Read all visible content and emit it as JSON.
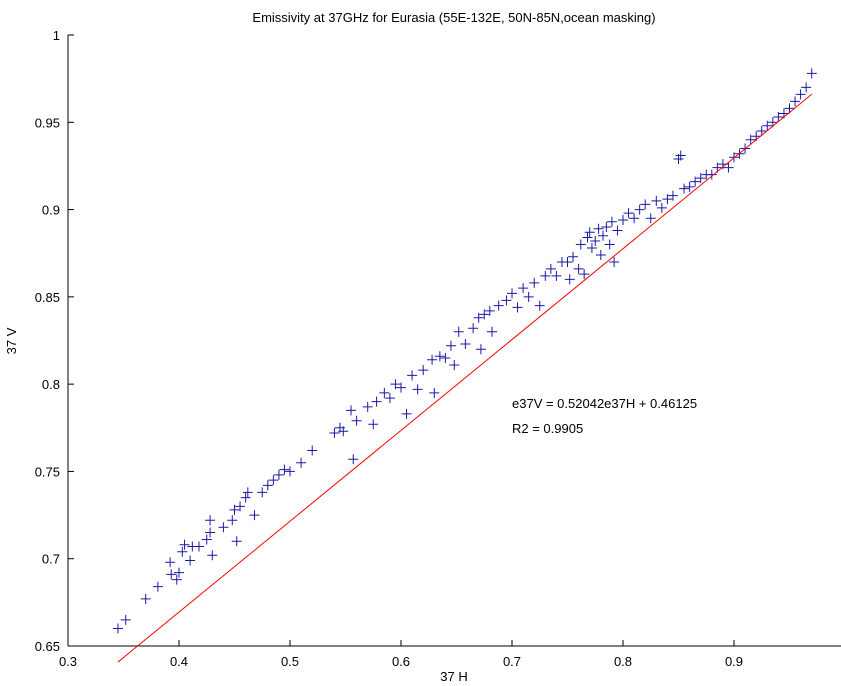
{
  "chart_data": {
    "type": "scatter",
    "title": "Emissivity at 37GHz for Eurasia (55E-132E, 50N-85N,ocean masking)",
    "xlabel": "37 H",
    "ylabel": "37 V",
    "xlim": [
      0.3,
      1.0
    ],
    "ylim": [
      0.65,
      1.0
    ],
    "xticks": [
      "0.3",
      "0.4",
      "0.5",
      "0.6",
      "0.7",
      "0.8",
      "0.9"
    ],
    "yticks": [
      "0.65",
      "0.7",
      "0.75",
      "0.8",
      "0.85",
      "0.9",
      "0.95",
      "1"
    ],
    "grid": false,
    "marker": "+",
    "colors": {
      "points": "#1a1aa6",
      "fit_line": "#ff0000",
      "axis": "#000000"
    },
    "annotations": [
      "e37V = 0.52042e37H + 0.46125",
      "R2 = 0.9905"
    ],
    "fit_line": {
      "slope": 0.52042,
      "intercept": 0.46125,
      "x_range": [
        0.345,
        0.97
      ]
    },
    "points": [
      [
        0.345,
        0.66
      ],
      [
        0.352,
        0.665
      ],
      [
        0.37,
        0.677
      ],
      [
        0.381,
        0.684
      ],
      [
        0.392,
        0.698
      ],
      [
        0.393,
        0.691
      ],
      [
        0.398,
        0.688
      ],
      [
        0.4,
        0.692
      ],
      [
        0.403,
        0.704
      ],
      [
        0.405,
        0.708
      ],
      [
        0.41,
        0.699
      ],
      [
        0.412,
        0.707
      ],
      [
        0.418,
        0.707
      ],
      [
        0.425,
        0.711
      ],
      [
        0.428,
        0.715
      ],
      [
        0.428,
        0.722
      ],
      [
        0.43,
        0.702
      ],
      [
        0.44,
        0.718
      ],
      [
        0.448,
        0.722
      ],
      [
        0.45,
        0.728
      ],
      [
        0.452,
        0.71
      ],
      [
        0.455,
        0.73
      ],
      [
        0.46,
        0.735
      ],
      [
        0.462,
        0.738
      ],
      [
        0.468,
        0.725
      ],
      [
        0.475,
        0.738
      ],
      [
        0.48,
        0.742
      ],
      [
        0.485,
        0.745
      ],
      [
        0.49,
        0.748
      ],
      [
        0.495,
        0.751
      ],
      [
        0.5,
        0.75
      ],
      [
        0.51,
        0.755
      ],
      [
        0.52,
        0.762
      ],
      [
        0.54,
        0.772
      ],
      [
        0.545,
        0.775
      ],
      [
        0.548,
        0.773
      ],
      [
        0.555,
        0.785
      ],
      [
        0.557,
        0.757
      ],
      [
        0.56,
        0.779
      ],
      [
        0.57,
        0.787
      ],
      [
        0.575,
        0.777
      ],
      [
        0.578,
        0.79
      ],
      [
        0.585,
        0.795
      ],
      [
        0.59,
        0.792
      ],
      [
        0.595,
        0.8
      ],
      [
        0.6,
        0.798
      ],
      [
        0.605,
        0.783
      ],
      [
        0.61,
        0.805
      ],
      [
        0.615,
        0.797
      ],
      [
        0.62,
        0.808
      ],
      [
        0.628,
        0.814
      ],
      [
        0.63,
        0.795
      ],
      [
        0.635,
        0.816
      ],
      [
        0.64,
        0.815
      ],
      [
        0.645,
        0.822
      ],
      [
        0.648,
        0.811
      ],
      [
        0.652,
        0.83
      ],
      [
        0.658,
        0.823
      ],
      [
        0.665,
        0.832
      ],
      [
        0.67,
        0.838
      ],
      [
        0.672,
        0.82
      ],
      [
        0.675,
        0.84
      ],
      [
        0.68,
        0.842
      ],
      [
        0.682,
        0.83
      ],
      [
        0.688,
        0.845
      ],
      [
        0.695,
        0.848
      ],
      [
        0.7,
        0.852
      ],
      [
        0.705,
        0.844
      ],
      [
        0.71,
        0.855
      ],
      [
        0.715,
        0.85
      ],
      [
        0.72,
        0.858
      ],
      [
        0.725,
        0.845
      ],
      [
        0.73,
        0.862
      ],
      [
        0.735,
        0.866
      ],
      [
        0.74,
        0.862
      ],
      [
        0.745,
        0.87
      ],
      [
        0.75,
        0.87
      ],
      [
        0.752,
        0.86
      ],
      [
        0.755,
        0.873
      ],
      [
        0.76,
        0.866
      ],
      [
        0.762,
        0.88
      ],
      [
        0.765,
        0.863
      ],
      [
        0.768,
        0.884
      ],
      [
        0.77,
        0.887
      ],
      [
        0.772,
        0.878
      ],
      [
        0.775,
        0.882
      ],
      [
        0.778,
        0.889
      ],
      [
        0.78,
        0.874
      ],
      [
        0.782,
        0.885
      ],
      [
        0.785,
        0.89
      ],
      [
        0.788,
        0.88
      ],
      [
        0.79,
        0.893
      ],
      [
        0.792,
        0.87
      ],
      [
        0.795,
        0.888
      ],
      [
        0.8,
        0.894
      ],
      [
        0.805,
        0.898
      ],
      [
        0.81,
        0.895
      ],
      [
        0.815,
        0.9
      ],
      [
        0.82,
        0.903
      ],
      [
        0.825,
        0.895
      ],
      [
        0.83,
        0.905
      ],
      [
        0.835,
        0.901
      ],
      [
        0.84,
        0.906
      ],
      [
        0.845,
        0.908
      ],
      [
        0.85,
        0.929
      ],
      [
        0.852,
        0.931
      ],
      [
        0.855,
        0.912
      ],
      [
        0.86,
        0.913
      ],
      [
        0.865,
        0.916
      ],
      [
        0.87,
        0.918
      ],
      [
        0.875,
        0.92
      ],
      [
        0.88,
        0.92
      ],
      [
        0.885,
        0.924
      ],
      [
        0.89,
        0.926
      ],
      [
        0.895,
        0.924
      ],
      [
        0.9,
        0.93
      ],
      [
        0.905,
        0.932
      ],
      [
        0.91,
        0.935
      ],
      [
        0.915,
        0.94
      ],
      [
        0.92,
        0.942
      ],
      [
        0.925,
        0.945
      ],
      [
        0.93,
        0.948
      ],
      [
        0.935,
        0.95
      ],
      [
        0.94,
        0.953
      ],
      [
        0.945,
        0.955
      ],
      [
        0.95,
        0.958
      ],
      [
        0.955,
        0.962
      ],
      [
        0.96,
        0.966
      ],
      [
        0.965,
        0.97
      ],
      [
        0.97,
        0.978
      ]
    ]
  }
}
